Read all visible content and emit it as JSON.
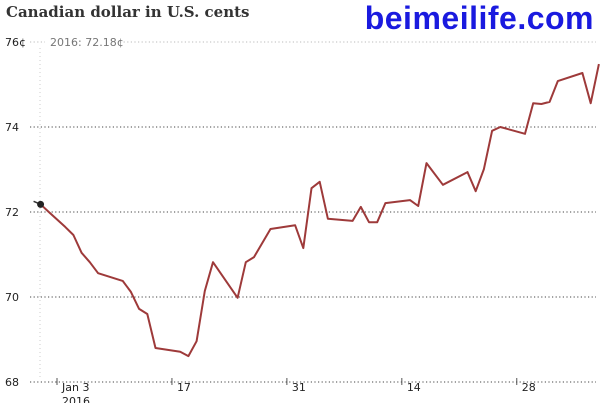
{
  "chart_data": {
    "type": "line",
    "title": "Canadian dollar in U.S. cents",
    "annotation": "2016: 72.18¢",
    "ylim": [
      68,
      76
    ],
    "y_ticks": [
      {
        "value": 76,
        "label": "76¢"
      },
      {
        "value": 74,
        "label": "74"
      },
      {
        "value": 72,
        "label": "72"
      },
      {
        "value": 70,
        "label": "70"
      },
      {
        "value": 68,
        "label": "68"
      }
    ],
    "x_ticks": [
      {
        "date": "2016-01-03",
        "label": "Jan 3"
      },
      {
        "date": "2016-01-17",
        "label": "17"
      },
      {
        "date": "2016-01-31",
        "label": "31"
      },
      {
        "date": "2016-02-14",
        "label": "14"
      },
      {
        "date": "2016-02-28",
        "label": "28"
      }
    ],
    "x_year_label": "2016",
    "grid": "horizontal dotted",
    "line_color": "#9e3a3a",
    "points": [
      [
        "2016-01-01",
        72.18
      ],
      [
        "2016-01-02",
        72.0
      ],
      [
        "2016-01-04",
        71.65
      ],
      [
        "2016-01-05",
        71.46
      ],
      [
        "2016-01-06",
        71.04
      ],
      [
        "2016-01-07",
        70.82
      ],
      [
        "2016-01-08",
        70.56
      ],
      [
        "2016-01-11",
        70.38
      ],
      [
        "2016-01-12",
        70.12
      ],
      [
        "2016-01-13",
        69.72
      ],
      [
        "2016-01-14",
        69.6
      ],
      [
        "2016-01-15",
        68.8
      ],
      [
        "2016-01-18",
        68.71
      ],
      [
        "2016-01-19",
        68.61
      ],
      [
        "2016-01-20",
        68.96
      ],
      [
        "2016-01-21",
        70.14
      ],
      [
        "2016-01-22",
        70.82
      ],
      [
        "2016-01-25",
        69.98
      ],
      [
        "2016-01-26",
        70.82
      ],
      [
        "2016-01-27",
        70.94
      ],
      [
        "2016-01-29",
        71.6
      ],
      [
        "2016-02-01",
        71.69
      ],
      [
        "2016-02-02",
        71.15
      ],
      [
        "2016-02-03",
        72.56
      ],
      [
        "2016-02-04",
        72.71
      ],
      [
        "2016-02-05",
        71.84
      ],
      [
        "2016-02-08",
        71.79
      ],
      [
        "2016-02-09",
        72.12
      ],
      [
        "2016-02-10",
        71.76
      ],
      [
        "2016-02-11",
        71.76
      ],
      [
        "2016-02-12",
        72.21
      ],
      [
        "2016-02-15",
        72.28
      ],
      [
        "2016-02-16",
        72.14
      ],
      [
        "2016-02-17",
        73.15
      ],
      [
        "2016-02-19",
        72.64
      ],
      [
        "2016-02-22",
        72.94
      ],
      [
        "2016-02-23",
        72.49
      ],
      [
        "2016-02-24",
        73.01
      ],
      [
        "2016-02-25",
        73.91
      ],
      [
        "2016-02-26",
        74.0
      ],
      [
        "2016-02-29",
        73.84
      ],
      [
        "2016-03-01",
        74.56
      ],
      [
        "2016-03-02",
        74.54
      ],
      [
        "2016-03-03",
        74.59
      ],
      [
        "2016-03-04",
        75.08
      ],
      [
        "2016-03-07",
        75.27
      ],
      [
        "2016-03-08",
        74.56
      ],
      [
        "2016-03-09",
        75.48
      ]
    ]
  },
  "watermark": "beimeilife.com"
}
